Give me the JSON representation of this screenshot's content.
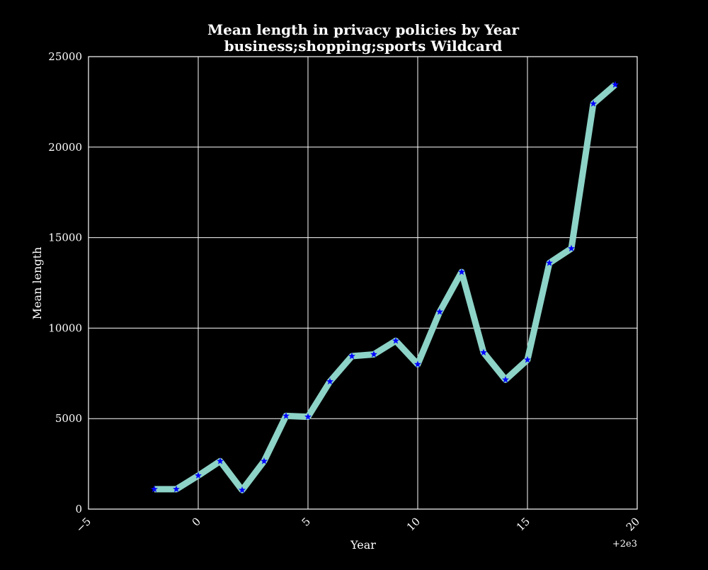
{
  "chart_data": {
    "type": "line",
    "title": "Mean length in privacy policies by Year",
    "subtitle": "business;shopping;sports Wildcard",
    "xlabel": "Year",
    "ylabel": "Mean length",
    "x_offset_label": "+2e3",
    "xlim": [
      -5,
      20
    ],
    "ylim": [
      0,
      25000
    ],
    "x_ticks": [
      -5,
      0,
      5,
      10,
      15,
      20
    ],
    "x_tick_labels": [
      "−5",
      "0",
      "5",
      "10",
      "15",
      "20"
    ],
    "y_ticks": [
      0,
      5000,
      10000,
      15000,
      20000,
      25000
    ],
    "y_tick_labels": [
      "0",
      "5000",
      "10000",
      "15000",
      "20000",
      "25000"
    ],
    "grid": true,
    "series": [
      {
        "x": [
          -2,
          -1,
          0,
          1,
          2,
          3,
          4,
          5,
          6,
          7,
          8,
          9,
          10,
          11,
          12,
          13,
          14,
          15,
          16,
          17,
          18,
          19
        ],
        "y": [
          1100,
          1100,
          1850,
          2650,
          1050,
          2650,
          5150,
          5100,
          7050,
          8450,
          8550,
          9300,
          8000,
          10900,
          13100,
          8650,
          7150,
          8250,
          13600,
          14400,
          22400,
          23450
        ],
        "line_color": "#8dd3c7",
        "marker": "star",
        "marker_color": "#0000ff"
      }
    ]
  }
}
